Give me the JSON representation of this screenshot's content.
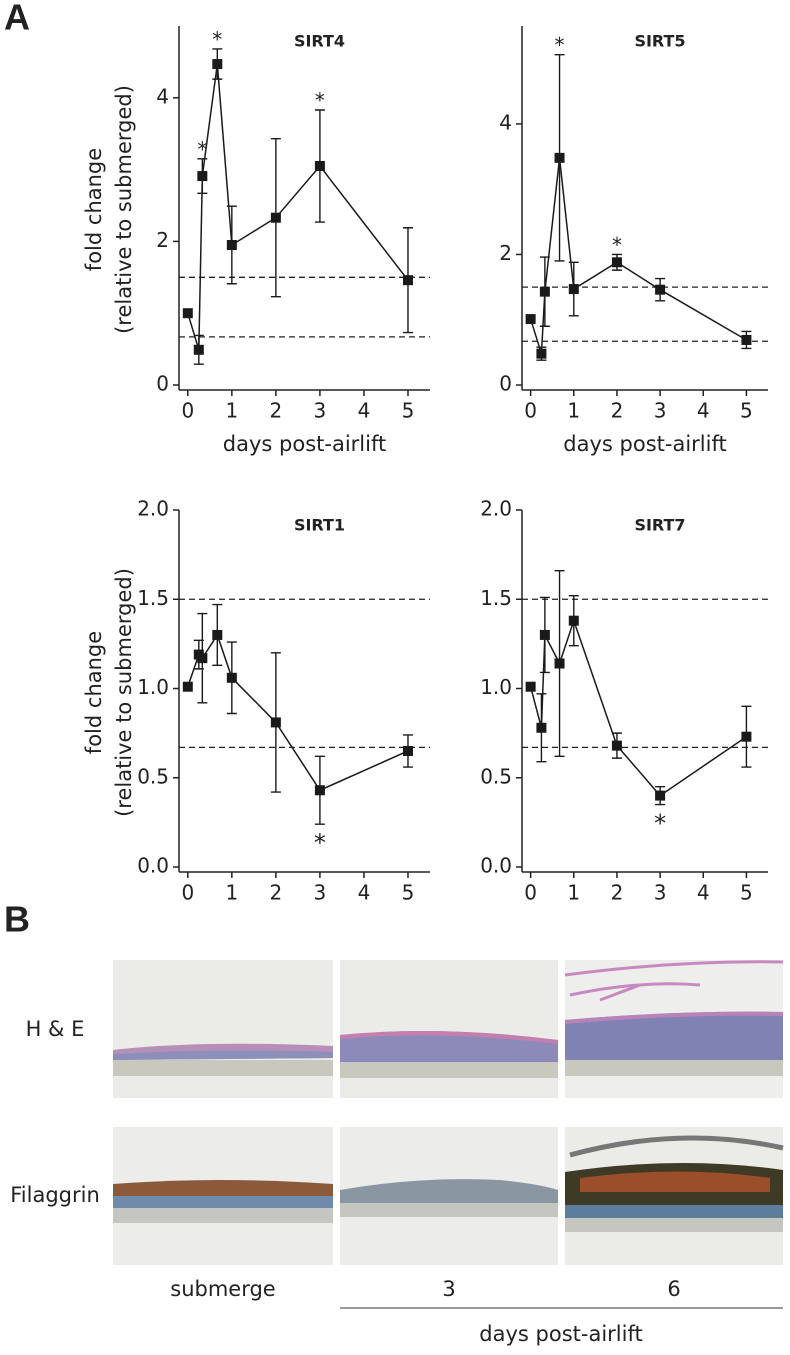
{
  "panel_labels": [
    "A",
    "B"
  ],
  "chart_data": [
    {
      "type": "line",
      "title": "SIRT4",
      "ylabel": [
        "fold change",
        "(relative to submerged)"
      ],
      "xlabel": "days post-airlift",
      "x": [
        0,
        0.25,
        0.33,
        0.67,
        1,
        2,
        3,
        5
      ],
      "values": [
        1.0,
        0.49,
        2.91,
        4.47,
        1.95,
        2.33,
        3.05,
        1.46
      ],
      "errors": [
        null,
        0.2,
        0.24,
        0.21,
        0.54,
        1.1,
        0.78,
        0.73
      ],
      "reference_lines": [
        1.5,
        0.67
      ],
      "color": "#1a1a1a",
      "xlim": [
        -0.2,
        5.5
      ],
      "ylim": [
        0,
        5
      ],
      "xticks": [
        0,
        1,
        2,
        3,
        4,
        5
      ],
      "yticks": [
        0,
        2,
        4
      ],
      "annotations": [
        {
          "text": "*",
          "x": 0.33,
          "position": "above"
        },
        {
          "text": "*",
          "x": 0.67,
          "position": "above"
        },
        {
          "text": "*",
          "x": 3,
          "position": "above"
        }
      ]
    },
    {
      "type": "line",
      "title": "SIRT5",
      "xlabel": "days post-airlift",
      "x": [
        0,
        0.25,
        0.33,
        0.67,
        1,
        2,
        3,
        5
      ],
      "values": [
        1.01,
        0.48,
        1.43,
        3.48,
        1.47,
        1.88,
        1.46,
        0.69
      ],
      "errors": [
        null,
        0.1,
        0.53,
        1.58,
        0.41,
        0.12,
        0.17,
        0.13
      ],
      "reference_lines": [
        1.5,
        0.67
      ],
      "color": "#1a1a1a",
      "xlim": [
        -0.2,
        5.5
      ],
      "ylim": [
        0,
        5.5
      ],
      "xticks": [
        0,
        1,
        2,
        3,
        4,
        5
      ],
      "yticks": [
        0,
        2,
        4
      ],
      "annotations": [
        {
          "text": "*",
          "x": 0.67,
          "position": "above"
        },
        {
          "text": "*",
          "x": 2,
          "position": "above"
        }
      ]
    },
    {
      "type": "line",
      "title": "SIRT1",
      "ylabel": [
        "fold change",
        "(relative to submerged)"
      ],
      "x": [
        0,
        0.25,
        0.33,
        0.67,
        1,
        2,
        3,
        5
      ],
      "values": [
        1.01,
        1.19,
        1.17,
        1.3,
        1.06,
        0.81,
        0.43,
        0.65
      ],
      "errors": [
        null,
        0.08,
        0.25,
        0.17,
        0.2,
        0.39,
        0.19,
        0.09
      ],
      "reference_lines": [
        1.5,
        0.67
      ],
      "color": "#1a1a1a",
      "xlim": [
        -0.2,
        5.5
      ],
      "ylim": [
        0,
        2
      ],
      "xticks": [
        0,
        1,
        2,
        3,
        4,
        5
      ],
      "yticks": [
        {
          "value": 0,
          "label": "0.0"
        },
        {
          "value": 0.5,
          "label": "0.5"
        },
        {
          "value": 1,
          "label": "1.0"
        },
        {
          "value": 1.5,
          "label": "1.5"
        },
        {
          "value": 2,
          "label": "2.0"
        }
      ],
      "annotations": [
        {
          "text": "*",
          "x": 3,
          "position": "below"
        }
      ]
    },
    {
      "type": "line",
      "title": "SIRT7",
      "x": [
        0,
        0.25,
        0.33,
        0.67,
        1,
        2,
        3,
        5
      ],
      "values": [
        1.01,
        0.78,
        1.3,
        1.14,
        1.38,
        0.68,
        0.4,
        0.73
      ],
      "errors": [
        null,
        0.19,
        0.21,
        0.52,
        0.14,
        0.07,
        0.05,
        0.17
      ],
      "reference_lines": [
        1.5,
        0.67
      ],
      "color": "#1a1a1a",
      "xlim": [
        -0.2,
        5.5
      ],
      "ylim": [
        0,
        2
      ],
      "xticks": [
        0,
        1,
        2,
        3,
        4,
        5
      ],
      "yticks": [
        {
          "value": 0,
          "label": "0.0"
        },
        {
          "value": 0.5,
          "label": "0.5"
        },
        {
          "value": 1,
          "label": "1.0"
        },
        {
          "value": 1.5,
          "label": "1.5"
        },
        {
          "value": 2,
          "label": "2.0"
        }
      ],
      "annotations": [
        {
          "text": "*",
          "x": 3,
          "position": "below"
        }
      ]
    }
  ],
  "panel_b": {
    "row_labels": [
      "H & E",
      "Filaggrin"
    ],
    "column_labels": [
      "submerge",
      "3",
      "6"
    ],
    "group_label": "days post-airlift"
  }
}
